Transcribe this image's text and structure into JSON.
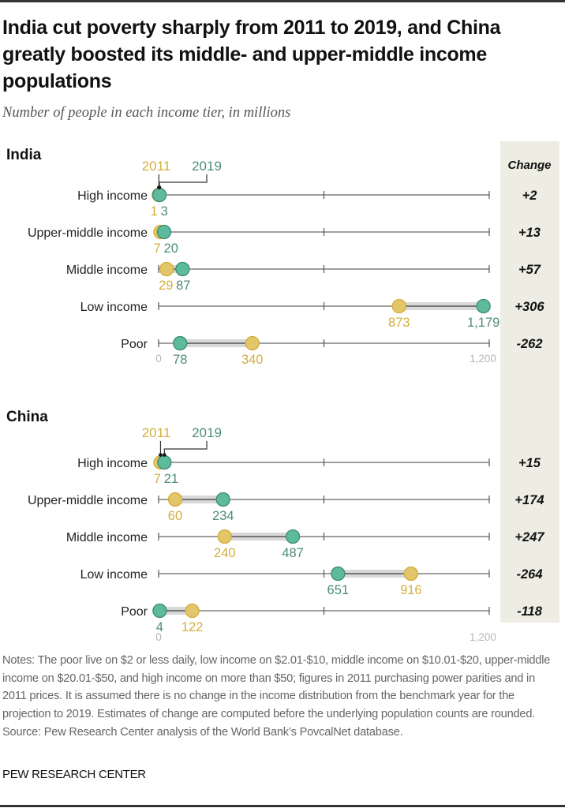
{
  "title": "India cut poverty sharply from 2011 to 2019, and China greatly boosted its middle- and upper-middle income populations",
  "subtitle": "Number of people in each income tier, in millions",
  "notes": "Notes: The poor live on $2 or less daily, low income on $2.01-$10, middle income on $10.01-$20, upper-middle income on $20.01-$50, and high income on more than $50; figures in 2011 purchasing power parities and in 2011 prices. It is assumed there is no change in the income distribution from the benchmark year for the projection to 2019. Estimates of change are computed before the underlying population counts are rounded.",
  "source": "Source: Pew Research Center analysis of the World Bank’s PovcalNet database.",
  "brand": "PEW RESEARCH CENTER",
  "colors": {
    "y2011_fill": "#E3C66A",
    "y2011_stroke": "#D2AE3C",
    "y2011_text": "#D4AE3E",
    "y2019_fill": "#5DBB9D",
    "y2019_stroke": "#3F8A72",
    "y2019_text": "#4C8C78",
    "change_panel": "#EEEDE3"
  },
  "chart_data": {
    "type": "dot-plot",
    "title": "India cut poverty sharply from 2011 to 2019, and China greatly boosted its middle- and upper-middle income populations",
    "subtitle": "Number of people in each income tier, in millions",
    "legend": [
      "2011",
      "2019"
    ],
    "change_header": "Change",
    "xlim": [
      0,
      1200
    ],
    "axis_ticks": [
      0,
      600,
      1200
    ],
    "axis_tick_labels": [
      "0",
      "1,200"
    ],
    "panels": [
      {
        "name": "India",
        "rows": [
          {
            "category": "High income",
            "v2011": 1,
            "v2019": 3,
            "label2011": "1",
            "label2019": "3",
            "change": "+2"
          },
          {
            "category": "Upper-middle income",
            "v2011": 7,
            "v2019": 20,
            "label2011": "7",
            "label2019": "20",
            "change": "+13"
          },
          {
            "category": "Middle income",
            "v2011": 29,
            "v2019": 87,
            "label2011": "29",
            "label2019": "87",
            "change": "+57"
          },
          {
            "category": "Low income",
            "v2011": 873,
            "v2019": 1179,
            "label2011": "873",
            "label2019": "1,179",
            "change": "+306"
          },
          {
            "category": "Poor",
            "v2011": 340,
            "v2019": 78,
            "label2011": "340",
            "label2019": "78",
            "change": "-262"
          }
        ]
      },
      {
        "name": "China",
        "rows": [
          {
            "category": "High income",
            "v2011": 7,
            "v2019": 21,
            "label2011": "7",
            "label2019": "21",
            "change": "+15"
          },
          {
            "category": "Upper-middle income",
            "v2011": 60,
            "v2019": 234,
            "label2011": "60",
            "label2019": "234",
            "change": "+174"
          },
          {
            "category": "Middle income",
            "v2011": 240,
            "v2019": 487,
            "label2011": "240",
            "label2019": "487",
            "change": "+247"
          },
          {
            "category": "Low income",
            "v2011": 916,
            "v2019": 651,
            "label2011": "916",
            "label2019": "651",
            "change": "-264"
          },
          {
            "category": "Poor",
            "v2011": 122,
            "v2019": 4,
            "label2011": "122",
            "label2019": "4",
            "change": "-118"
          }
        ]
      }
    ]
  }
}
